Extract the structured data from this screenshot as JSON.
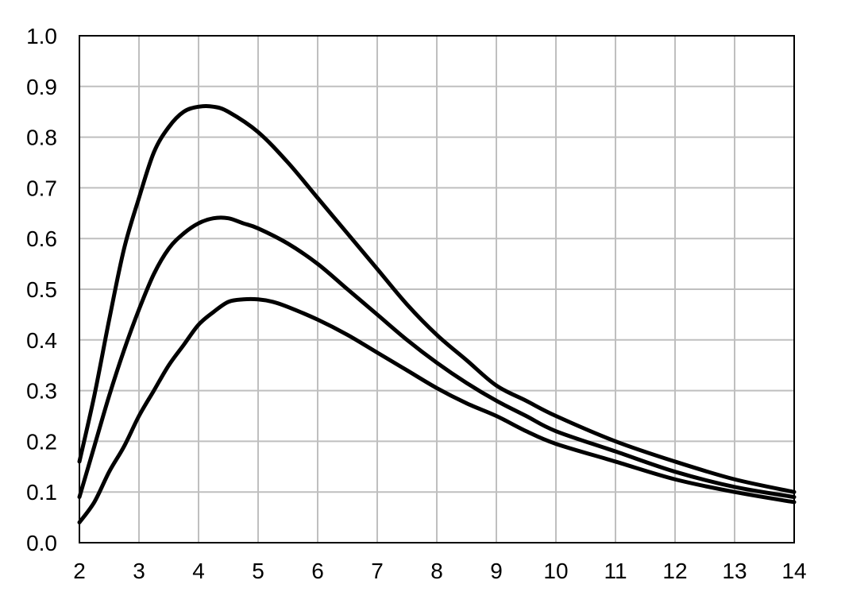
{
  "chart_data": {
    "type": "line",
    "title": "",
    "xlabel": "",
    "ylabel": "",
    "xlim": [
      2,
      14
    ],
    "ylim": [
      0,
      1
    ],
    "x_ticks": [
      "2",
      "3",
      "4",
      "5",
      "6",
      "7",
      "8",
      "9",
      "10",
      "11",
      "12",
      "13",
      "14"
    ],
    "y_ticks": [
      "0.0",
      "0.1",
      "0.2",
      "0.3",
      "0.4",
      "0.5",
      "0.6",
      "0.7",
      "0.8",
      "0.9",
      "1.0"
    ],
    "grid": true,
    "legend": "none",
    "line_color": "#000000",
    "grid_color": "#bfbfbf",
    "series": [
      {
        "x": [
          2,
          2.25,
          2.5,
          2.75,
          3,
          3.25,
          3.5,
          3.75,
          4,
          4.25,
          4.5,
          5,
          5.5,
          6,
          6.5,
          7,
          7.5,
          8,
          8.5,
          9,
          9.5,
          10,
          11,
          12,
          13,
          14
        ],
        "y": [
          0.16,
          0.29,
          0.44,
          0.58,
          0.68,
          0.77,
          0.82,
          0.85,
          0.86,
          0.86,
          0.85,
          0.81,
          0.75,
          0.68,
          0.61,
          0.54,
          0.47,
          0.41,
          0.36,
          0.31,
          0.28,
          0.25,
          0.2,
          0.16,
          0.125,
          0.1
        ]
      },
      {
        "x": [
          2,
          2.25,
          2.5,
          2.75,
          3,
          3.25,
          3.5,
          3.75,
          4,
          4.25,
          4.5,
          4.75,
          5,
          5.5,
          6,
          6.5,
          7,
          7.5,
          8,
          8.5,
          9,
          9.5,
          10,
          11,
          12,
          13,
          14
        ],
        "y": [
          0.09,
          0.19,
          0.29,
          0.38,
          0.46,
          0.53,
          0.58,
          0.61,
          0.63,
          0.64,
          0.64,
          0.63,
          0.62,
          0.59,
          0.55,
          0.5,
          0.45,
          0.4,
          0.355,
          0.315,
          0.28,
          0.25,
          0.22,
          0.18,
          0.14,
          0.11,
          0.09
        ]
      },
      {
        "x": [
          2,
          2.25,
          2.5,
          2.75,
          3,
          3.25,
          3.5,
          3.75,
          4,
          4.25,
          4.5,
          4.75,
          5,
          5.25,
          5.5,
          6,
          6.5,
          7,
          7.5,
          8,
          8.5,
          9,
          9.5,
          10,
          11,
          12,
          13,
          14
        ],
        "y": [
          0.04,
          0.08,
          0.14,
          0.19,
          0.25,
          0.3,
          0.35,
          0.39,
          0.43,
          0.455,
          0.475,
          0.48,
          0.48,
          0.475,
          0.465,
          0.44,
          0.41,
          0.375,
          0.34,
          0.305,
          0.275,
          0.25,
          0.22,
          0.195,
          0.16,
          0.125,
          0.1,
          0.08
        ]
      }
    ]
  }
}
